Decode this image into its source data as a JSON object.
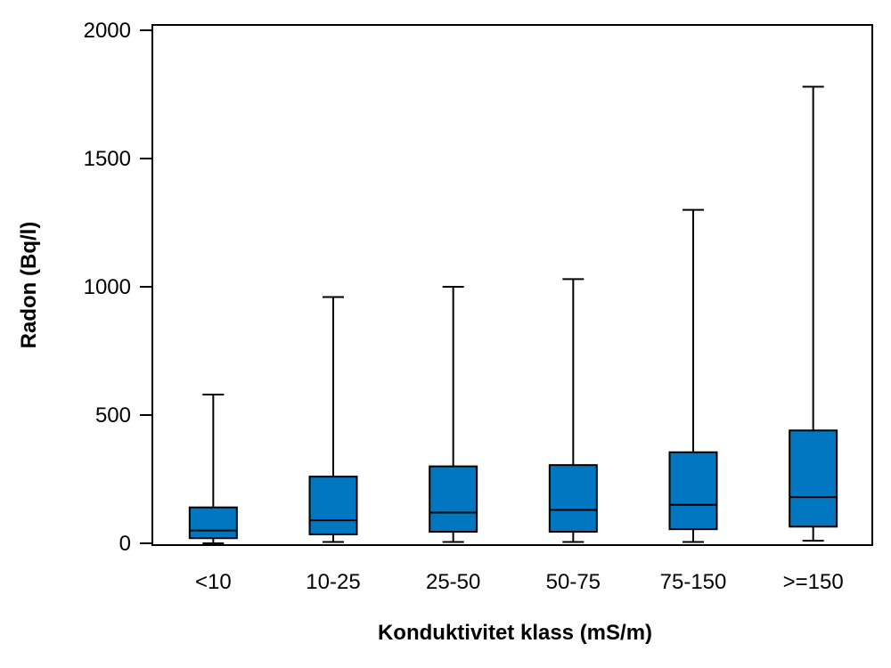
{
  "chart_data": {
    "type": "boxplot",
    "title": "",
    "xlabel": "Konduktivitet klass (mS/m)",
    "ylabel": "Radon (Bq/l)",
    "ylim": [
      0,
      2000
    ],
    "yticks": [
      0,
      500,
      1000,
      1500,
      2000
    ],
    "grid": false,
    "box_color": "#0077C0",
    "categories": [
      "<10",
      "10-25",
      "25-50",
      "50-75",
      "75-150",
      ">=150"
    ],
    "boxes": [
      {
        "category": "<10",
        "min": 0,
        "q1": 20,
        "median": 50,
        "q3": 140,
        "max": 580
      },
      {
        "category": "10-25",
        "min": 5,
        "q1": 35,
        "median": 90,
        "q3": 260,
        "max": 960
      },
      {
        "category": "25-50",
        "min": 5,
        "q1": 45,
        "median": 120,
        "q3": 300,
        "max": 1000
      },
      {
        "category": "50-75",
        "min": 5,
        "q1": 45,
        "median": 130,
        "q3": 305,
        "max": 1030
      },
      {
        "category": "75-150",
        "min": 5,
        "q1": 55,
        "median": 150,
        "q3": 355,
        "max": 1300
      },
      {
        "category": ">=150",
        "min": 10,
        "q1": 65,
        "median": 180,
        "q3": 440,
        "max": 1780
      }
    ]
  }
}
